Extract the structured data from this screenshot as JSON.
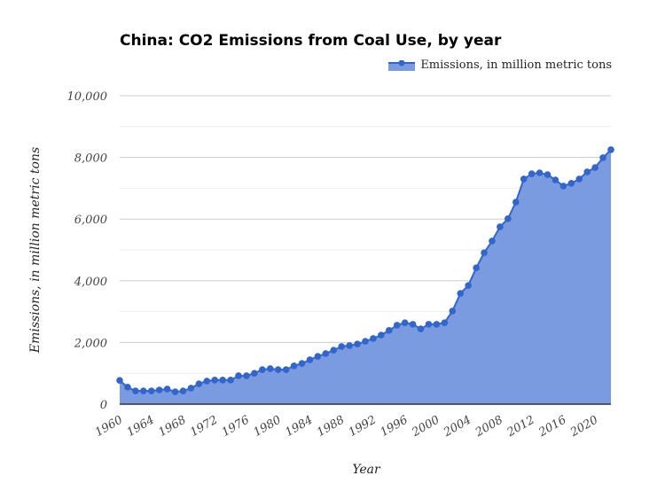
{
  "chart_data": {
    "type": "area",
    "title": "China: CO2 Emissions from Coal Use, by year",
    "xlabel": "Year",
    "ylabel": "Emissions, in million metric tons",
    "ylim": [
      0,
      10000
    ],
    "yticks": [
      0,
      2000,
      4000,
      6000,
      8000,
      10000
    ],
    "ytick_labels": [
      "0",
      "2,000",
      "4,000",
      "6,000",
      "8,000",
      "10,000"
    ],
    "xticks": [
      1960,
      1964,
      1968,
      1972,
      1976,
      1980,
      1984,
      1988,
      1992,
      1996,
      2000,
      2004,
      2008,
      2012,
      2016,
      2020
    ],
    "grid": true,
    "legend": "top-right",
    "colors": {
      "line": "#3366cc",
      "fill": "#7a9be0"
    },
    "series": [
      {
        "name": "Emissions, in million metric tons",
        "x": [
          1960,
          1961,
          1962,
          1963,
          1964,
          1965,
          1966,
          1967,
          1968,
          1969,
          1970,
          1971,
          1972,
          1973,
          1974,
          1975,
          1976,
          1977,
          1978,
          1979,
          1980,
          1981,
          1982,
          1983,
          1984,
          1985,
          1986,
          1987,
          1988,
          1989,
          1990,
          1991,
          1992,
          1993,
          1994,
          1995,
          1996,
          1997,
          1998,
          1999,
          2000,
          2001,
          2002,
          2003,
          2004,
          2005,
          2006,
          2007,
          2008,
          2009,
          2010,
          2011,
          2012,
          2013,
          2014,
          2015,
          2016,
          2017,
          2018,
          2019,
          2020,
          2021,
          2022
        ],
        "values": [
          770,
          550,
          430,
          430,
          430,
          460,
          490,
          400,
          430,
          520,
          660,
          750,
          780,
          780,
          780,
          920,
          920,
          1000,
          1120,
          1150,
          1120,
          1120,
          1240,
          1320,
          1440,
          1550,
          1640,
          1750,
          1870,
          1900,
          1950,
          2040,
          2130,
          2240,
          2390,
          2560,
          2640,
          2590,
          2440,
          2590,
          2590,
          2640,
          3020,
          3590,
          3850,
          4420,
          4910,
          5290,
          5750,
          6010,
          6550,
          7300,
          7470,
          7500,
          7440,
          7270,
          7070,
          7160,
          7300,
          7530,
          7670,
          7990,
          8250
        ]
      }
    ]
  }
}
